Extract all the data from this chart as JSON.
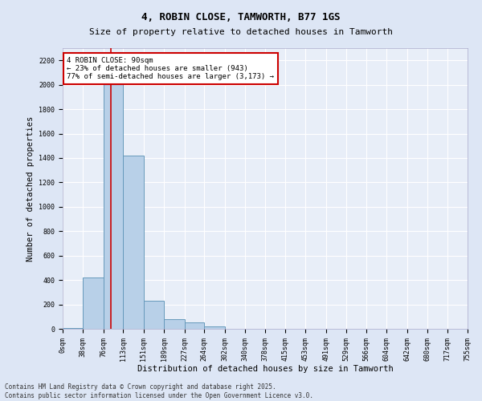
{
  "title": "4, ROBIN CLOSE, TAMWORTH, B77 1GS",
  "subtitle": "Size of property relative to detached houses in Tamworth",
  "xlabel": "Distribution of detached houses by size in Tamworth",
  "ylabel": "Number of detached properties",
  "bar_color": "#b8d0e8",
  "bar_edge_color": "#6699bb",
  "bg_color": "#e8eef8",
  "grid_color": "#ffffff",
  "bin_edges": [
    0,
    38,
    76,
    113,
    151,
    189,
    227,
    264,
    302,
    340,
    378,
    415,
    453,
    491,
    529,
    566,
    604,
    642,
    680,
    717,
    755
  ],
  "bin_labels": [
    "0sqm",
    "38sqm",
    "76sqm",
    "113sqm",
    "151sqm",
    "189sqm",
    "227sqm",
    "264sqm",
    "302sqm",
    "340sqm",
    "378sqm",
    "415sqm",
    "453sqm",
    "491sqm",
    "529sqm",
    "566sqm",
    "604sqm",
    "642sqm",
    "680sqm",
    "717sqm",
    "755sqm"
  ],
  "bar_heights": [
    5,
    420,
    2100,
    1420,
    230,
    80,
    50,
    20,
    0,
    0,
    0,
    0,
    0,
    0,
    0,
    0,
    0,
    0,
    0,
    0
  ],
  "ylim": [
    0,
    2300
  ],
  "yticks": [
    0,
    200,
    400,
    600,
    800,
    1000,
    1200,
    1400,
    1600,
    1800,
    2000,
    2200
  ],
  "property_line_x": 90,
  "property_line_color": "#cc0000",
  "annotation_text": "4 ROBIN CLOSE: 90sqm\n← 23% of detached houses are smaller (943)\n77% of semi-detached houses are larger (3,173) →",
  "annotation_box_color": "#cc0000",
  "footnote": "Contains HM Land Registry data © Crown copyright and database right 2025.\nContains public sector information licensed under the Open Government Licence v3.0.",
  "title_fontsize": 9,
  "subtitle_fontsize": 8,
  "axis_label_fontsize": 7.5,
  "tick_fontsize": 6,
  "annotation_fontsize": 6.5,
  "footnote_fontsize": 5.5
}
